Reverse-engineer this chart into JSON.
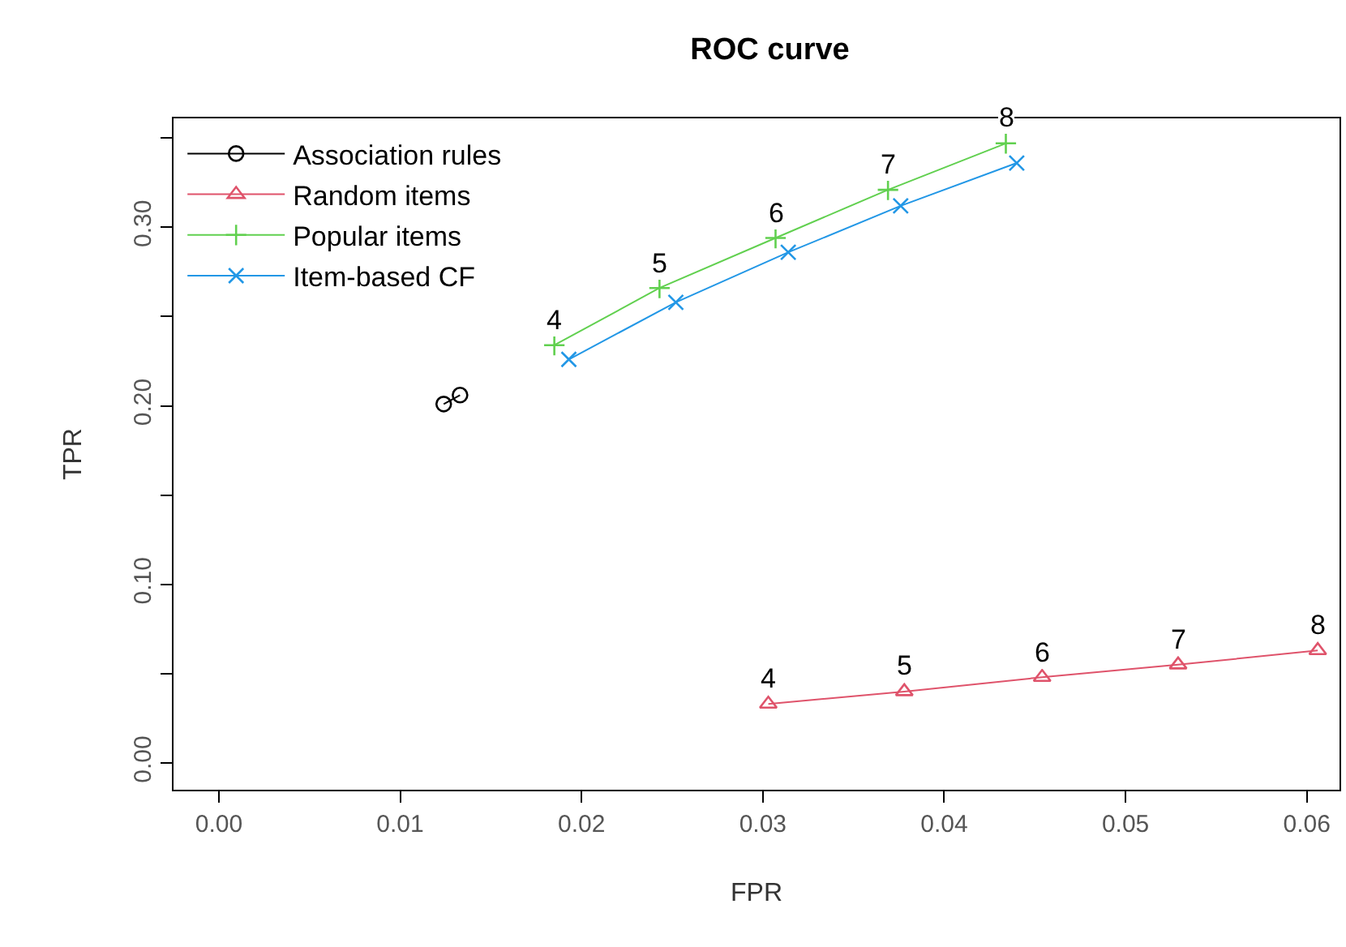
{
  "chart_data": {
    "type": "line",
    "title": "ROC curve",
    "xlabel": "FPR",
    "ylabel": "TPR",
    "xlim": [
      -0.0025,
      0.0618
    ],
    "ylim": [
      -0.015,
      0.361
    ],
    "xticks": [
      {
        "value": 0.0,
        "label": "0.00"
      },
      {
        "value": 0.01,
        "label": "0.01"
      },
      {
        "value": 0.02,
        "label": "0.02"
      },
      {
        "value": 0.03,
        "label": "0.03"
      },
      {
        "value": 0.04,
        "label": "0.04"
      },
      {
        "value": 0.05,
        "label": "0.05"
      },
      {
        "value": 0.06,
        "label": "0.06"
      }
    ],
    "yticks": [
      {
        "value": 0.0,
        "label": "0.00"
      },
      {
        "value": 0.05,
        "label": null
      },
      {
        "value": 0.1,
        "label": "0.10"
      },
      {
        "value": 0.15,
        "label": null
      },
      {
        "value": 0.2,
        "label": "0.20"
      },
      {
        "value": 0.25,
        "label": null
      },
      {
        "value": 0.3,
        "label": "0.30"
      },
      {
        "value": 0.35,
        "label": null
      }
    ],
    "legend": "top left",
    "series": [
      {
        "name": "Association rules",
        "color": "#000000",
        "marker": "circle",
        "x": [
          0.0124,
          0.0133
        ],
        "values": [
          0.201,
          0.206
        ]
      },
      {
        "name": "Random items",
        "color": "#df536b",
        "marker": "triangle",
        "x": [
          0.0303,
          0.0378,
          0.0454,
          0.0529,
          0.0606
        ],
        "values": [
          0.033,
          0.04,
          0.048,
          0.055,
          0.063
        ]
      },
      {
        "name": "Popular items",
        "color": "#61d04f",
        "marker": "cross",
        "x": [
          0.0185,
          0.0243,
          0.0307,
          0.0369,
          0.0434
        ],
        "values": [
          0.234,
          0.266,
          0.294,
          0.321,
          0.347
        ]
      },
      {
        "name": "Item-based CF",
        "color": "#2297e6",
        "marker": "x",
        "x": [
          0.0193,
          0.0252,
          0.0314,
          0.0376,
          0.044
        ],
        "values": [
          0.226,
          0.258,
          0.286,
          0.312,
          0.336
        ]
      }
    ],
    "annotations": [
      {
        "text": "4",
        "x": 0.0303,
        "y": 0.033
      },
      {
        "text": "5",
        "x": 0.0378,
        "y": 0.04
      },
      {
        "text": "6",
        "x": 0.0454,
        "y": 0.048
      },
      {
        "text": "7",
        "x": 0.0529,
        "y": 0.055
      },
      {
        "text": "8",
        "x": 0.0606,
        "y": 0.063
      },
      {
        "text": "4",
        "x": 0.0185,
        "y": 0.234
      },
      {
        "text": "5",
        "x": 0.0243,
        "y": 0.266
      },
      {
        "text": "6",
        "x": 0.0307,
        "y": 0.294
      },
      {
        "text": "7",
        "x": 0.0369,
        "y": 0.321
      },
      {
        "text": "8",
        "x": 0.0434,
        "y": 0.347
      }
    ]
  }
}
